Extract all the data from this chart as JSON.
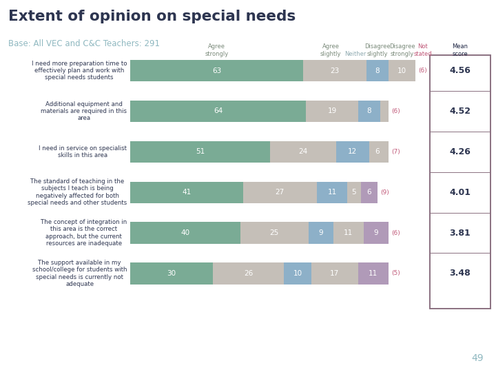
{
  "title": "Extent of opinion on special needs",
  "subtitle": "Base: All VEC and C&C Teachers: 291",
  "row_labels": [
    "I need more preparation time to\neffectively plan and work with\nspecial needs students",
    "Additional equipment and\nmaterials are required in this\narea",
    "I need in service on specialist\nskills in this area",
    "The standard of teaching in the\nsubjects I teach is being\nnegatively affected for both\nspecial needs and other students",
    "The concept of integration in\nthis area is the correct\napproach, but the current\nresources are inadequate",
    "The support available in my\nschool/college for students with\nspecial needs is currently not\nadequate"
  ],
  "bar_segments": [
    [
      63,
      23,
      8,
      10,
      0
    ],
    [
      64,
      19,
      8,
      3,
      0
    ],
    [
      51,
      24,
      12,
      6,
      1
    ],
    [
      41,
      27,
      11,
      5,
      6
    ],
    [
      40,
      25,
      9,
      11,
      9
    ],
    [
      30,
      26,
      10,
      17,
      11
    ]
  ],
  "not_stated_paren": [
    6,
    6,
    7,
    9,
    6,
    5
  ],
  "mean_scores": [
    "4.56",
    "4.52",
    "4.26",
    "4.01",
    "3.81",
    "3.48"
  ],
  "seg_colors": [
    "#7aab95",
    "#c5bfb8",
    "#8db0c8",
    "#c5bfb8",
    "#b09ab8"
  ],
  "color_agree_strongly": "#7aab95",
  "color_neither": "#c5bfb8",
  "color_disagree_slightly": "#8db0c8",
  "color_disagree_strongly_tan": "#c5bfb8",
  "color_disagree_strongly_purple": "#b09ab8",
  "title_color": "#2d3550",
  "subtitle_color": "#8fb8c0",
  "header_agree_color": "#7a8a7a",
  "header_neither_color": "#8faab0",
  "header_disagree_color": "#7a8a7a",
  "header_ns_color": "#c05878",
  "header_mean_color": "#1a2240",
  "mean_box_border_color": "#8a7080",
  "ns_text_color": "#c05878",
  "bar_text_color": "#ffffff",
  "page_num_color": "#8fb8c0",
  "background_color": "#ffffff",
  "scale_max": 104
}
